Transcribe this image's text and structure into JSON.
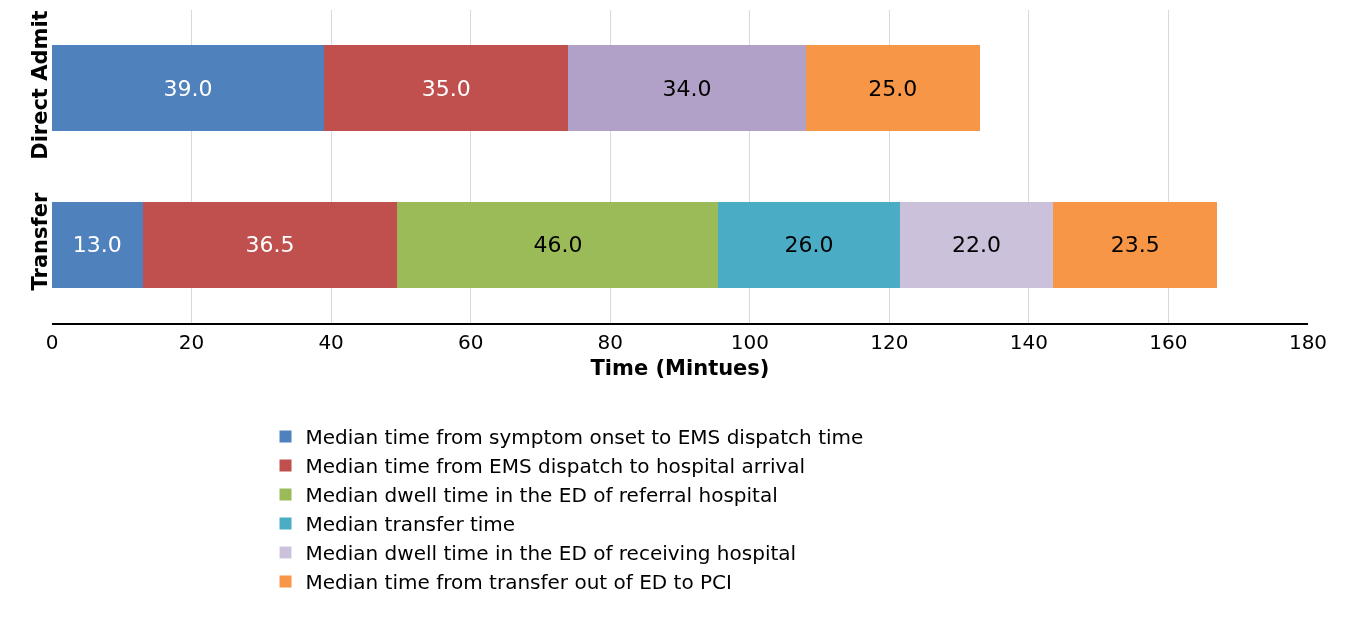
{
  "chart_data": {
    "type": "bar",
    "orientation": "horizontal",
    "stacked": true,
    "categories": [
      "Direct Admit",
      "Transfer"
    ],
    "xlabel": "Time (Mintues)",
    "xlim": [
      0,
      180
    ],
    "xticks": [
      0,
      20,
      40,
      60,
      80,
      100,
      120,
      140,
      160,
      180
    ],
    "grid": "x",
    "legend": "bottom",
    "series": [
      {
        "name": "Median time from symptom onset to EMS dispatch time",
        "color": "#4f81bd",
        "values": [
          39.0,
          13.0
        ],
        "value_labels": [
          "39.0",
          "13.0"
        ]
      },
      {
        "name": "Median time from EMS dispatch to hospital arrival",
        "color": "#c0504d",
        "values": [
          35.0,
          36.5
        ],
        "value_labels": [
          "35.0",
          "36.5"
        ]
      },
      {
        "name": "Median dwell time in the ED of referral hospital",
        "color": "#9bbb59",
        "values": [
          null,
          46.0
        ],
        "value_labels": [
          null,
          "46.0"
        ]
      },
      {
        "name": "Median transfer time",
        "color": "#4bacc6",
        "values": [
          null,
          26.0
        ],
        "value_labels": [
          null,
          "26.0"
        ]
      },
      {
        "name": "Median dwell time in the ED of receiving hospital",
        "color": "#ccc1da",
        "colors": [
          "#b1a0c7",
          "#ccc1da"
        ],
        "values": [
          34.0,
          22.0
        ],
        "value_labels": [
          "34.0",
          "22.0"
        ]
      },
      {
        "name": "Median time from transfer out of ED to PCI",
        "color": "#f79646",
        "values": [
          25.0,
          23.5
        ],
        "value_labels": [
          "25.0",
          "23.5"
        ]
      }
    ]
  }
}
